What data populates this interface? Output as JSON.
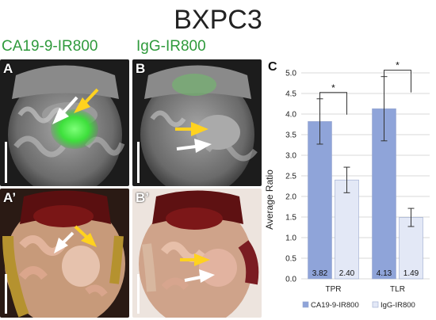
{
  "figure": {
    "title": "BXPC3",
    "column_labels": [
      "CA19-9-IR800",
      "IgG-IR800"
    ],
    "panel_letters": {
      "a": "A",
      "b": "B",
      "a_prime": "A’",
      "b_prime": "B’",
      "c": "C"
    }
  },
  "colors": {
    "probe_green": "#2f9a3c",
    "bar_ca199": "#8fa4d9",
    "bar_igg": "#e3e8f6",
    "arrow_yellow": "#ffd21f",
    "arrow_white": "#ffffff"
  },
  "chart_data": {
    "type": "bar",
    "categories": [
      "TPR",
      "TLR"
    ],
    "series": [
      {
        "name": "CA19-9-IR800",
        "values": [
          3.82,
          4.13
        ],
        "errors": [
          0.55,
          0.78
        ],
        "color": "#8fa4d9"
      },
      {
        "name": "IgG-IR800",
        "values": [
          2.4,
          1.49
        ],
        "errors": [
          0.31,
          0.22
        ],
        "color": "#e3e8f6"
      }
    ],
    "value_labels": [
      [
        "3.82",
        "4.13"
      ],
      [
        "2.40",
        "1.49"
      ]
    ],
    "ylabel": "Average Ratio",
    "xlabel": "",
    "ylim": [
      0,
      5
    ],
    "yticks": [
      "0.0",
      "0.5",
      "1.0",
      "1.5",
      "2.0",
      "2.5",
      "3.0",
      "3.5",
      "4.0",
      "4.5",
      "5.0"
    ],
    "significance": [
      "*",
      "*"
    ],
    "grid": true,
    "legend_position": "bottom"
  }
}
